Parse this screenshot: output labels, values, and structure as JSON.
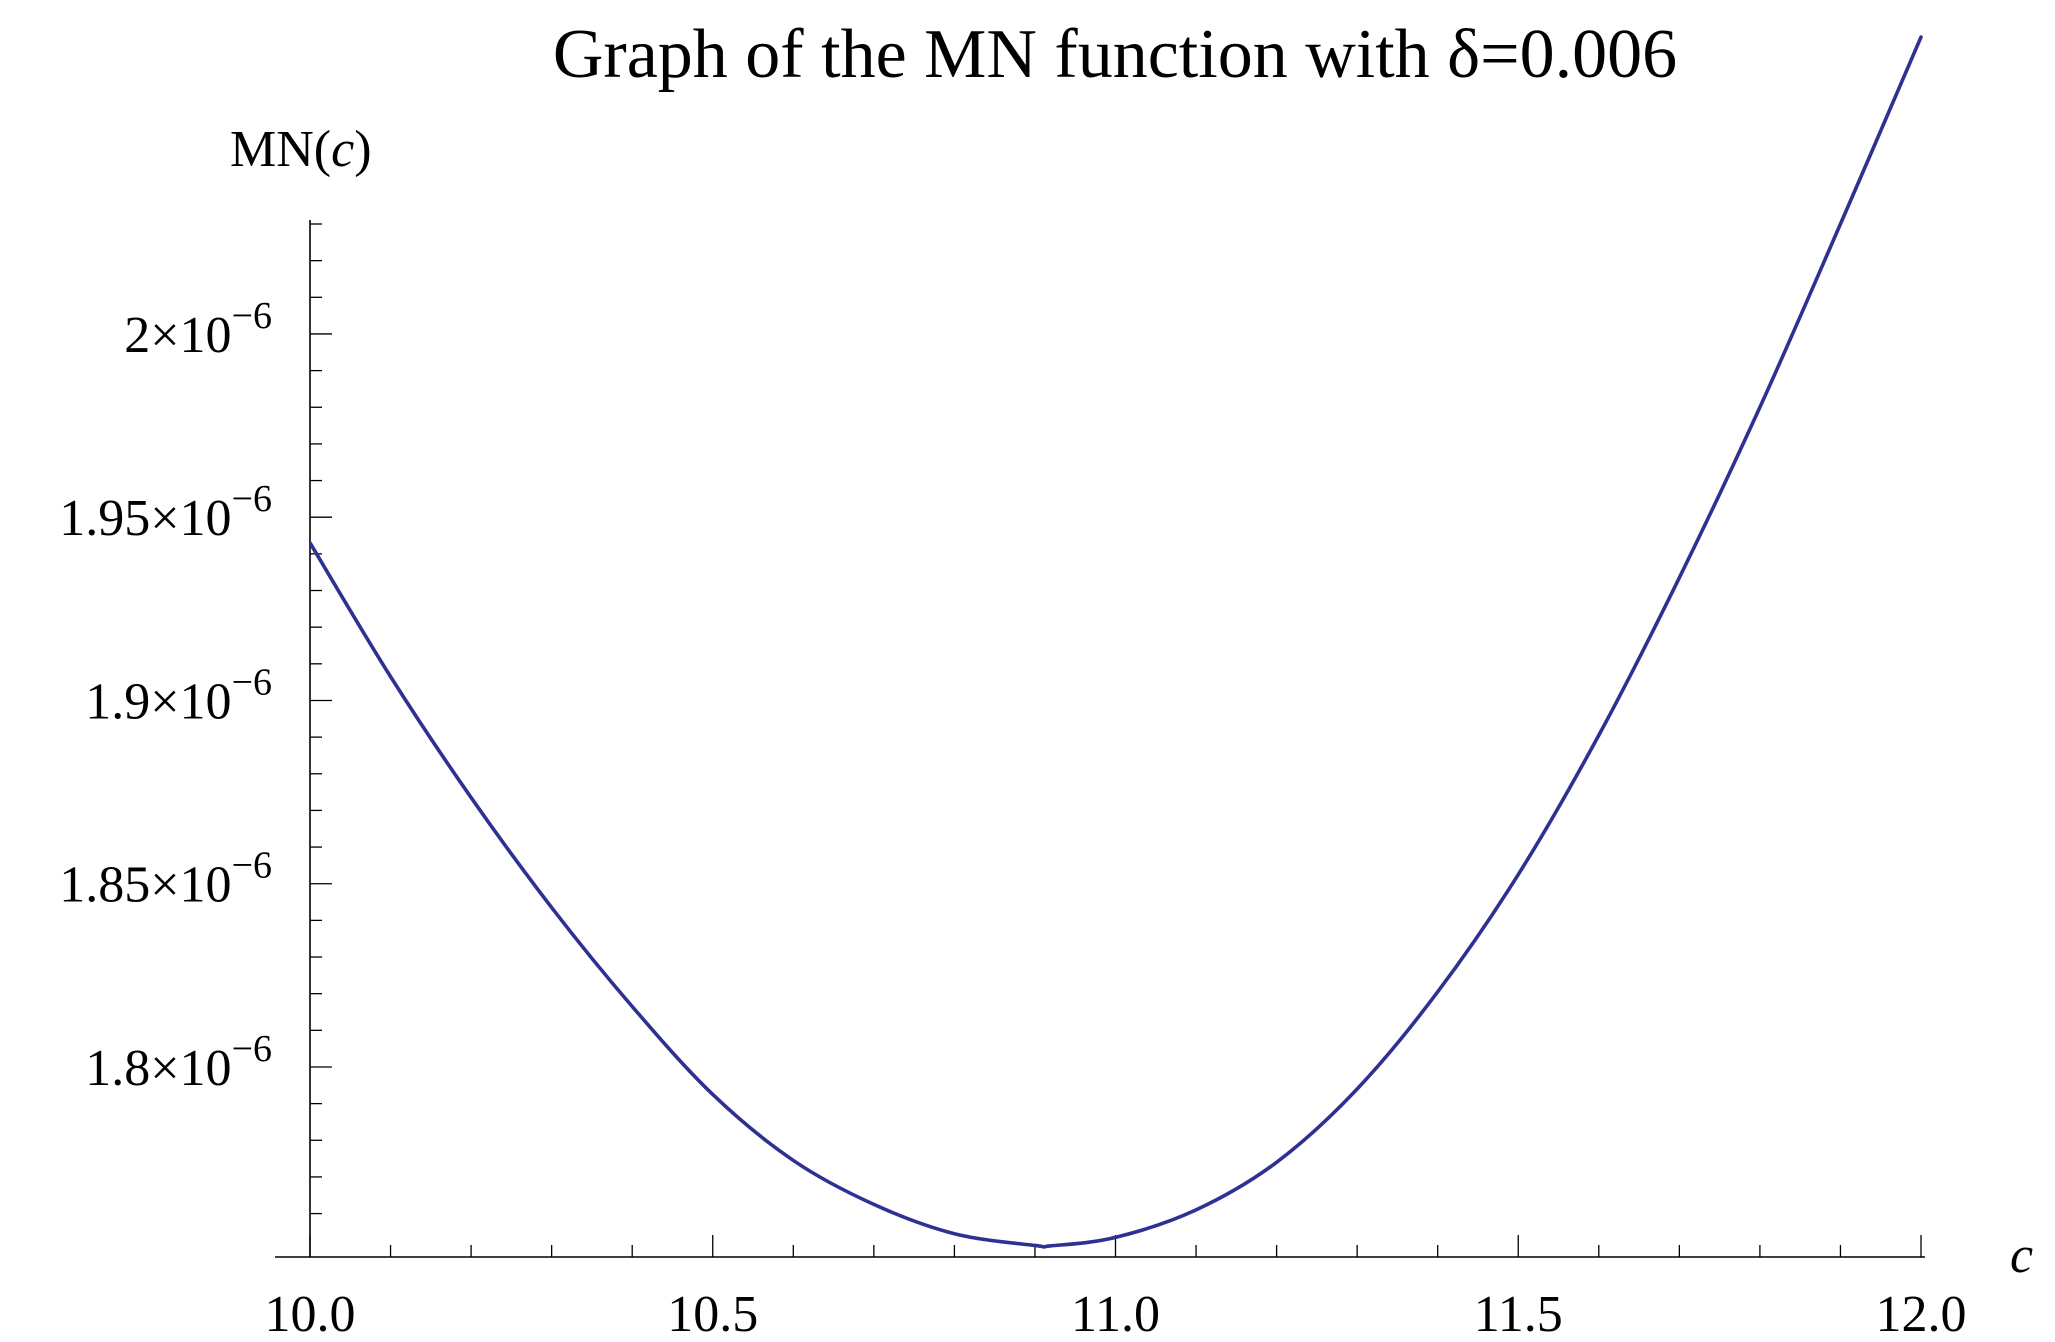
{
  "chart_data": {
    "type": "line",
    "title": "Graph of the MN function with δ=0.006",
    "xlabel": "c",
    "ylabel": "MN(c)",
    "xlim": [
      10.0,
      12.0
    ],
    "ylim": [
      1.7517e-06,
      2.03e-06
    ],
    "x_ticks": [
      10.0,
      10.5,
      11.0,
      11.5,
      12.0
    ],
    "x_tick_labels": [
      "10.0",
      "10.5",
      "11.0",
      "11.5",
      "12.0"
    ],
    "x_minor_step": 0.1,
    "y_ticks": [
      1.8e-06,
      1.85e-06,
      1.9e-06,
      1.95e-06,
      2e-06
    ],
    "y_tick_labels": [
      {
        "mantissa": "1.8",
        "exponent": "−6"
      },
      {
        "mantissa": "1.85",
        "exponent": "−6"
      },
      {
        "mantissa": "1.9",
        "exponent": "−6"
      },
      {
        "mantissa": "1.95",
        "exponent": "−6"
      },
      {
        "mantissa": "2",
        "exponent": "−6"
      }
    ],
    "y_minor_step": 1e-08,
    "grid": false,
    "series": [
      {
        "color": "#2e3192",
        "x": [
          10.0,
          10.1,
          10.2,
          10.3,
          10.4,
          10.5,
          10.6,
          10.7,
          10.8,
          10.9,
          10.92,
          11.0,
          11.1,
          11.2,
          11.3,
          11.4,
          11.5,
          11.6,
          11.7,
          11.8,
          11.9,
          12.0
        ],
        "y": [
          1.943e-06,
          1.9065e-06,
          1.8735e-06,
          1.8435e-06,
          1.8165e-06,
          1.7925e-06,
          1.7745e-06,
          1.7625e-06,
          1.7545e-06,
          1.7513e-06,
          1.7512e-06,
          1.7535e-06,
          1.761e-06,
          1.774e-06,
          1.794e-06,
          1.8205e-06,
          1.8525e-06,
          1.8905e-06,
          1.9335e-06,
          1.98e-06,
          2.03e-06,
          2.081e-06
        ]
      }
    ]
  }
}
